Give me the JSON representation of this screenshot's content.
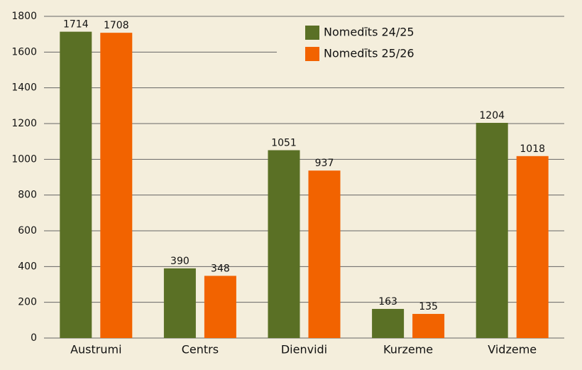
{
  "chart_data": {
    "type": "bar",
    "categories": [
      "Austrumi",
      "Centrs",
      "Dienvidi",
      "Kurzeme",
      "Vidzeme"
    ],
    "series": [
      {
        "name": "Nomedīts 24/25",
        "color": "#5a7025",
        "values": [
          1714,
          390,
          1051,
          163,
          1204
        ]
      },
      {
        "name": "Nomedīts 25/26",
        "color": "#f26300",
        "values": [
          1708,
          348,
          937,
          135,
          1018
        ]
      }
    ],
    "ylim": [
      0,
      1800
    ],
    "yticks": [
      0,
      200,
      400,
      600,
      800,
      1000,
      1200,
      1400,
      1600,
      1800
    ],
    "grid": true,
    "legend": "top-right"
  }
}
